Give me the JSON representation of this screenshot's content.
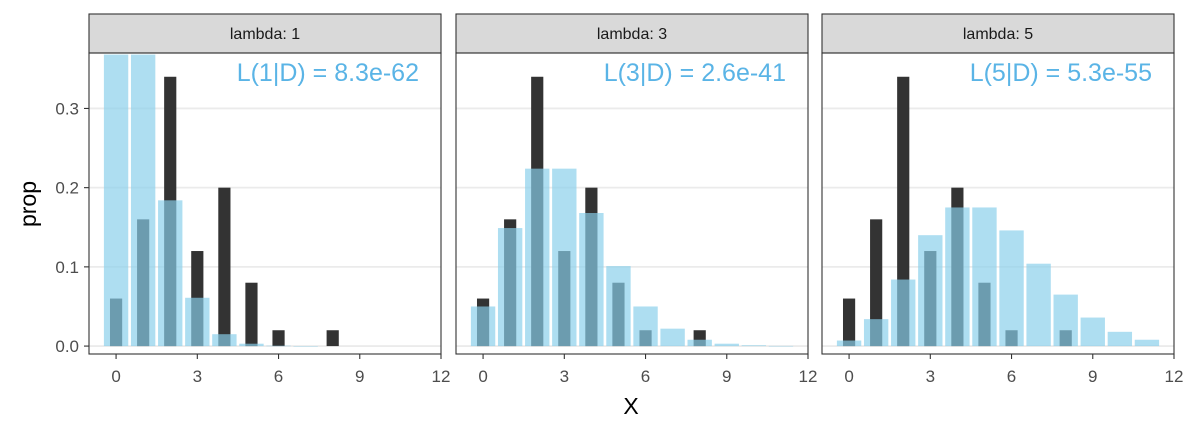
{
  "chart_data": {
    "type": "bar",
    "xlabel": "X",
    "ylabel": "prop",
    "xlim": [
      -1,
      12
    ],
    "ylim": [
      -0.01,
      0.37
    ],
    "x_ticks": [
      "0",
      "3",
      "6",
      "9",
      "12"
    ],
    "y_ticks": [
      "0.0",
      "0.1",
      "0.2",
      "0.3"
    ],
    "grid": true,
    "colors": {
      "observed": "#333333",
      "poisson": "#87ceeb",
      "annotation": "#5ab4e6",
      "strip_fill": "#d9d9d9",
      "gridline": "#ebebeb"
    },
    "observed": {
      "x": [
        0,
        1,
        2,
        3,
        4,
        5,
        6,
        8
      ],
      "values": [
        0.06,
        0.16,
        0.34,
        0.12,
        0.2,
        0.08,
        0.02,
        0.02
      ]
    },
    "panels": [
      {
        "strip": "lambda: 1",
        "annotation": "L(1|D) = 8.3e-62",
        "poisson": {
          "x": [
            0,
            1,
            2,
            3,
            4,
            5,
            6,
            7,
            8,
            9,
            10,
            11
          ],
          "values": [
            0.368,
            0.368,
            0.184,
            0.061,
            0.015,
            0.003,
            0.0005,
            0.0001,
            0,
            0,
            0,
            0
          ]
        }
      },
      {
        "strip": "lambda: 3",
        "annotation": "L(3|D) = 2.6e-41",
        "poisson": {
          "x": [
            0,
            1,
            2,
            3,
            4,
            5,
            6,
            7,
            8,
            9,
            10,
            11
          ],
          "values": [
            0.05,
            0.149,
            0.224,
            0.224,
            0.168,
            0.101,
            0.05,
            0.022,
            0.008,
            0.003,
            0.001,
            0.0002
          ]
        }
      },
      {
        "strip": "lambda: 5",
        "annotation": "L(5|D) = 5.3e-55",
        "poisson": {
          "x": [
            0,
            1,
            2,
            3,
            4,
            5,
            6,
            7,
            8,
            9,
            10,
            11
          ],
          "values": [
            0.007,
            0.034,
            0.084,
            0.14,
            0.175,
            0.175,
            0.146,
            0.104,
            0.065,
            0.036,
            0.018,
            0.008
          ]
        }
      }
    ]
  }
}
